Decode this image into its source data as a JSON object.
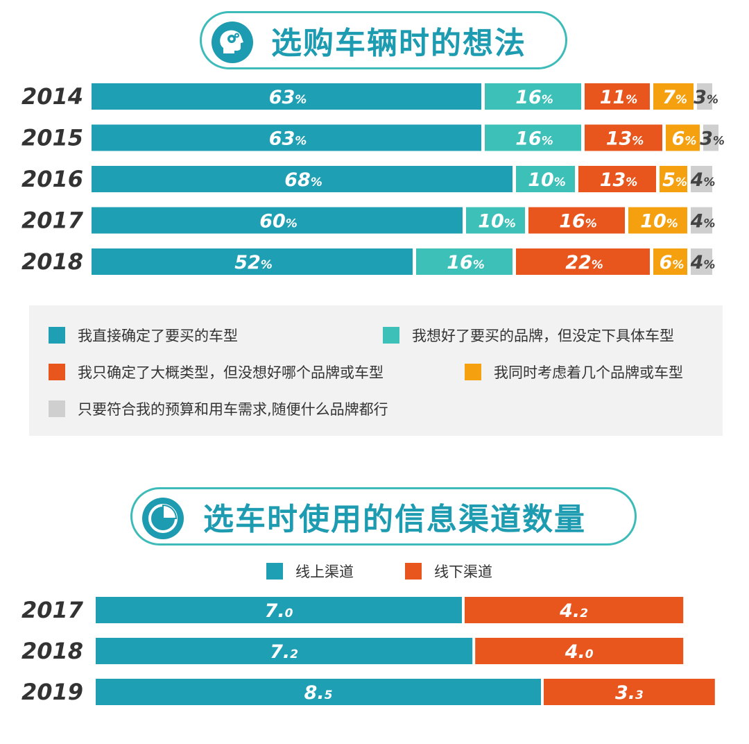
{
  "section1": {
    "title": "选购车辆时的想法",
    "icon": "head-gears-icon"
  },
  "section2": {
    "title": "选车时使用的信息渠道数量",
    "icon": "pie-chart-icon"
  },
  "colors": {
    "teal_dark": "#1f9fb3",
    "teal_light": "#3cc0b8",
    "orange_red": "#e8561e",
    "amber": "#f5a00f",
    "gray": "#cfcfcf"
  },
  "legend1": [
    {
      "label": "我直接确定了要买的车型",
      "color": "#1f9fb3"
    },
    {
      "label": "我想好了要买的品牌，但没定下具体车型",
      "color": "#3cc0b8"
    },
    {
      "label": "我只确定了大概类型，但没想好哪个品牌或车型",
      "color": "#e8561e"
    },
    {
      "label": "我同时考虑着几个品牌或车型",
      "color": "#f5a00f"
    },
    {
      "label": "只要符合我的预算和用车需求,随便什么品牌都行",
      "color": "#cfcfcf"
    }
  ],
  "legend2": [
    {
      "label": "线上渠道",
      "color": "#1f9fb3"
    },
    {
      "label": "线下渠道",
      "color": "#e8561e"
    }
  ],
  "chart_data": [
    {
      "type": "bar",
      "orientation": "horizontal",
      "stacked": true,
      "value_unit": "%",
      "categories": [
        "2014",
        "2015",
        "2016",
        "2017",
        "2018"
      ],
      "series": [
        {
          "name": "我直接确定了要买的车型",
          "values": [
            63,
            63,
            68,
            60,
            52
          ]
        },
        {
          "name": "我想好了要买的品牌，但没定下具体车型",
          "values": [
            16,
            16,
            10,
            10,
            16
          ]
        },
        {
          "name": "我只确定了大概类型，但没想好哪个品牌或车型",
          "values": [
            11,
            13,
            13,
            16,
            22
          ]
        },
        {
          "name": "我同时考虑着几个品牌或车型",
          "values": [
            7,
            6,
            5,
            10,
            6
          ]
        },
        {
          "name": "只要符合我的预算和用车需求,随便什么品牌都行",
          "values": [
            3,
            3,
            4,
            4,
            4
          ]
        }
      ],
      "legend": "bottom",
      "grid": false
    },
    {
      "type": "bar",
      "orientation": "horizontal",
      "stacked": true,
      "categories": [
        "2017",
        "2018",
        "2019"
      ],
      "series": [
        {
          "name": "线上渠道",
          "values": [
            7.0,
            7.2,
            8.5
          ]
        },
        {
          "name": "线下渠道",
          "values": [
            4.2,
            4.0,
            3.3
          ]
        }
      ],
      "legend": "top",
      "grid": false
    }
  ]
}
